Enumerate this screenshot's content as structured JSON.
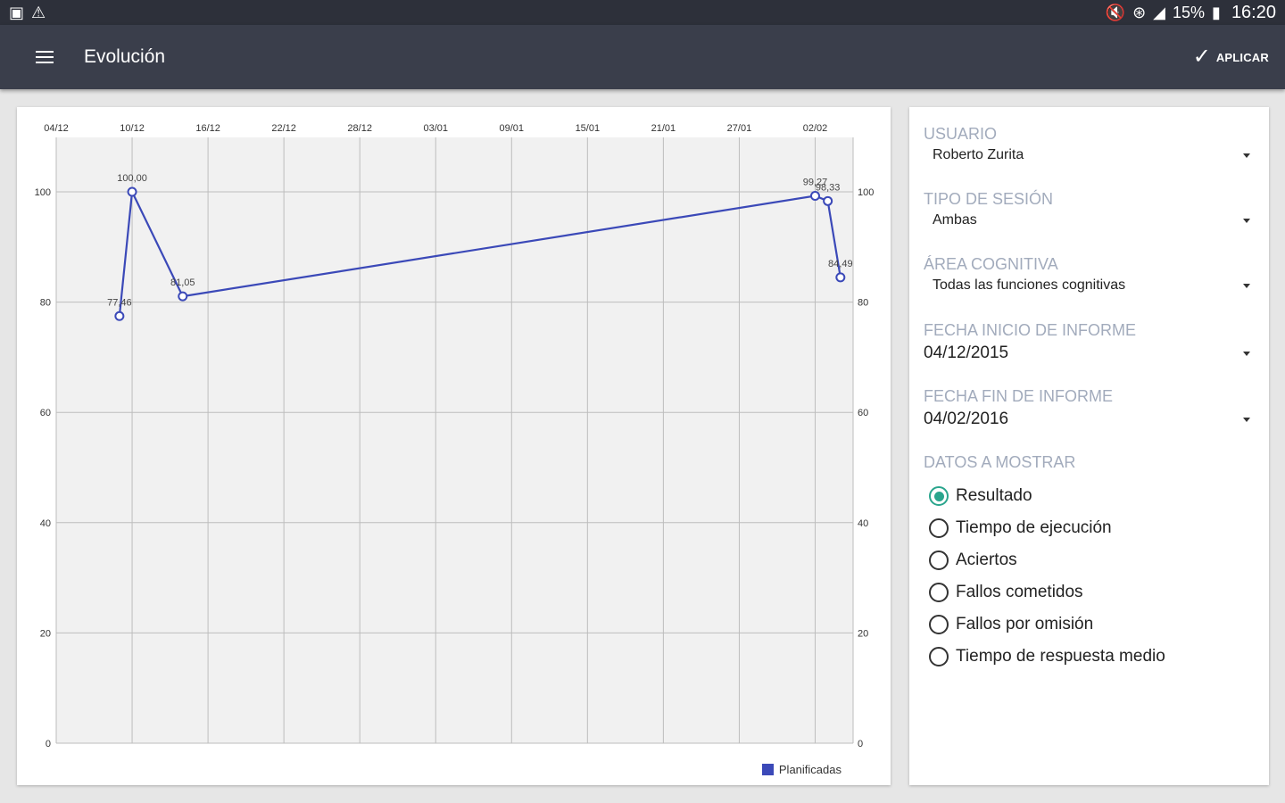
{
  "status_bar": {
    "left_icons": [
      "image-icon",
      "warning-icon"
    ],
    "right_icons": [
      "mute-icon",
      "wifi-icon",
      "signal-icon"
    ],
    "battery": "15%",
    "time": "16:20"
  },
  "app_bar": {
    "title": "Evolución",
    "apply_label": "APLICAR",
    "background": "#3a3e4b"
  },
  "chart_data": {
    "type": "line",
    "x_tick_labels": [
      "04/12",
      "10/12",
      "16/12",
      "22/12",
      "28/12",
      "03/01",
      "09/01",
      "15/01",
      "21/01",
      "27/01",
      "02/02"
    ],
    "y_ticks": [
      0,
      20,
      40,
      60,
      80,
      100
    ],
    "ylim": [
      0,
      100
    ],
    "x_range_days": [
      0,
      63
    ],
    "grid": true,
    "legend_position": "bottom-right",
    "series": [
      {
        "name": "Planificadas",
        "color": "#3b49b8",
        "points": [
          {
            "x": "09/12",
            "day": 5,
            "y": 77.46,
            "label": "77,46"
          },
          {
            "x": "10/12",
            "day": 6,
            "y": 100.0,
            "label": "100,00"
          },
          {
            "x": "14/12",
            "day": 10,
            "y": 81.05,
            "label": "81,05"
          },
          {
            "x": "02/02",
            "day": 60,
            "y": 99.27,
            "label": "99,27"
          },
          {
            "x": "03/02",
            "day": 61,
            "y": 98.33,
            "label": "98,33"
          },
          {
            "x": "04/02",
            "day": 62,
            "y": 84.49,
            "label": "84,49"
          }
        ]
      }
    ]
  },
  "filters": {
    "usuario": {
      "label": "USUARIO",
      "value": "Roberto Zurita"
    },
    "tipo_sesion": {
      "label": "TIPO DE SESIÓN",
      "value": "Ambas"
    },
    "area_cognitiva": {
      "label": "ÁREA COGNITIVA",
      "value": "Todas las funciones cognitivas"
    },
    "fecha_inicio": {
      "label": "FECHA INICIO DE INFORME",
      "value": "04/12/2015"
    },
    "fecha_fin": {
      "label": "FECHA FIN DE INFORME",
      "value": "04/02/2016"
    },
    "datos": {
      "label": "DATOS A MOSTRAR",
      "options": [
        {
          "label": "Resultado",
          "checked": true
        },
        {
          "label": "Tiempo de ejecución",
          "checked": false
        },
        {
          "label": "Aciertos",
          "checked": false
        },
        {
          "label": "Fallos cometidos",
          "checked": false
        },
        {
          "label": "Fallos por omisión",
          "checked": false
        },
        {
          "label": "Tiempo de respuesta medio",
          "checked": false
        }
      ]
    },
    "accent_color": "#2aa58d",
    "label_color": "#a2abbc"
  }
}
